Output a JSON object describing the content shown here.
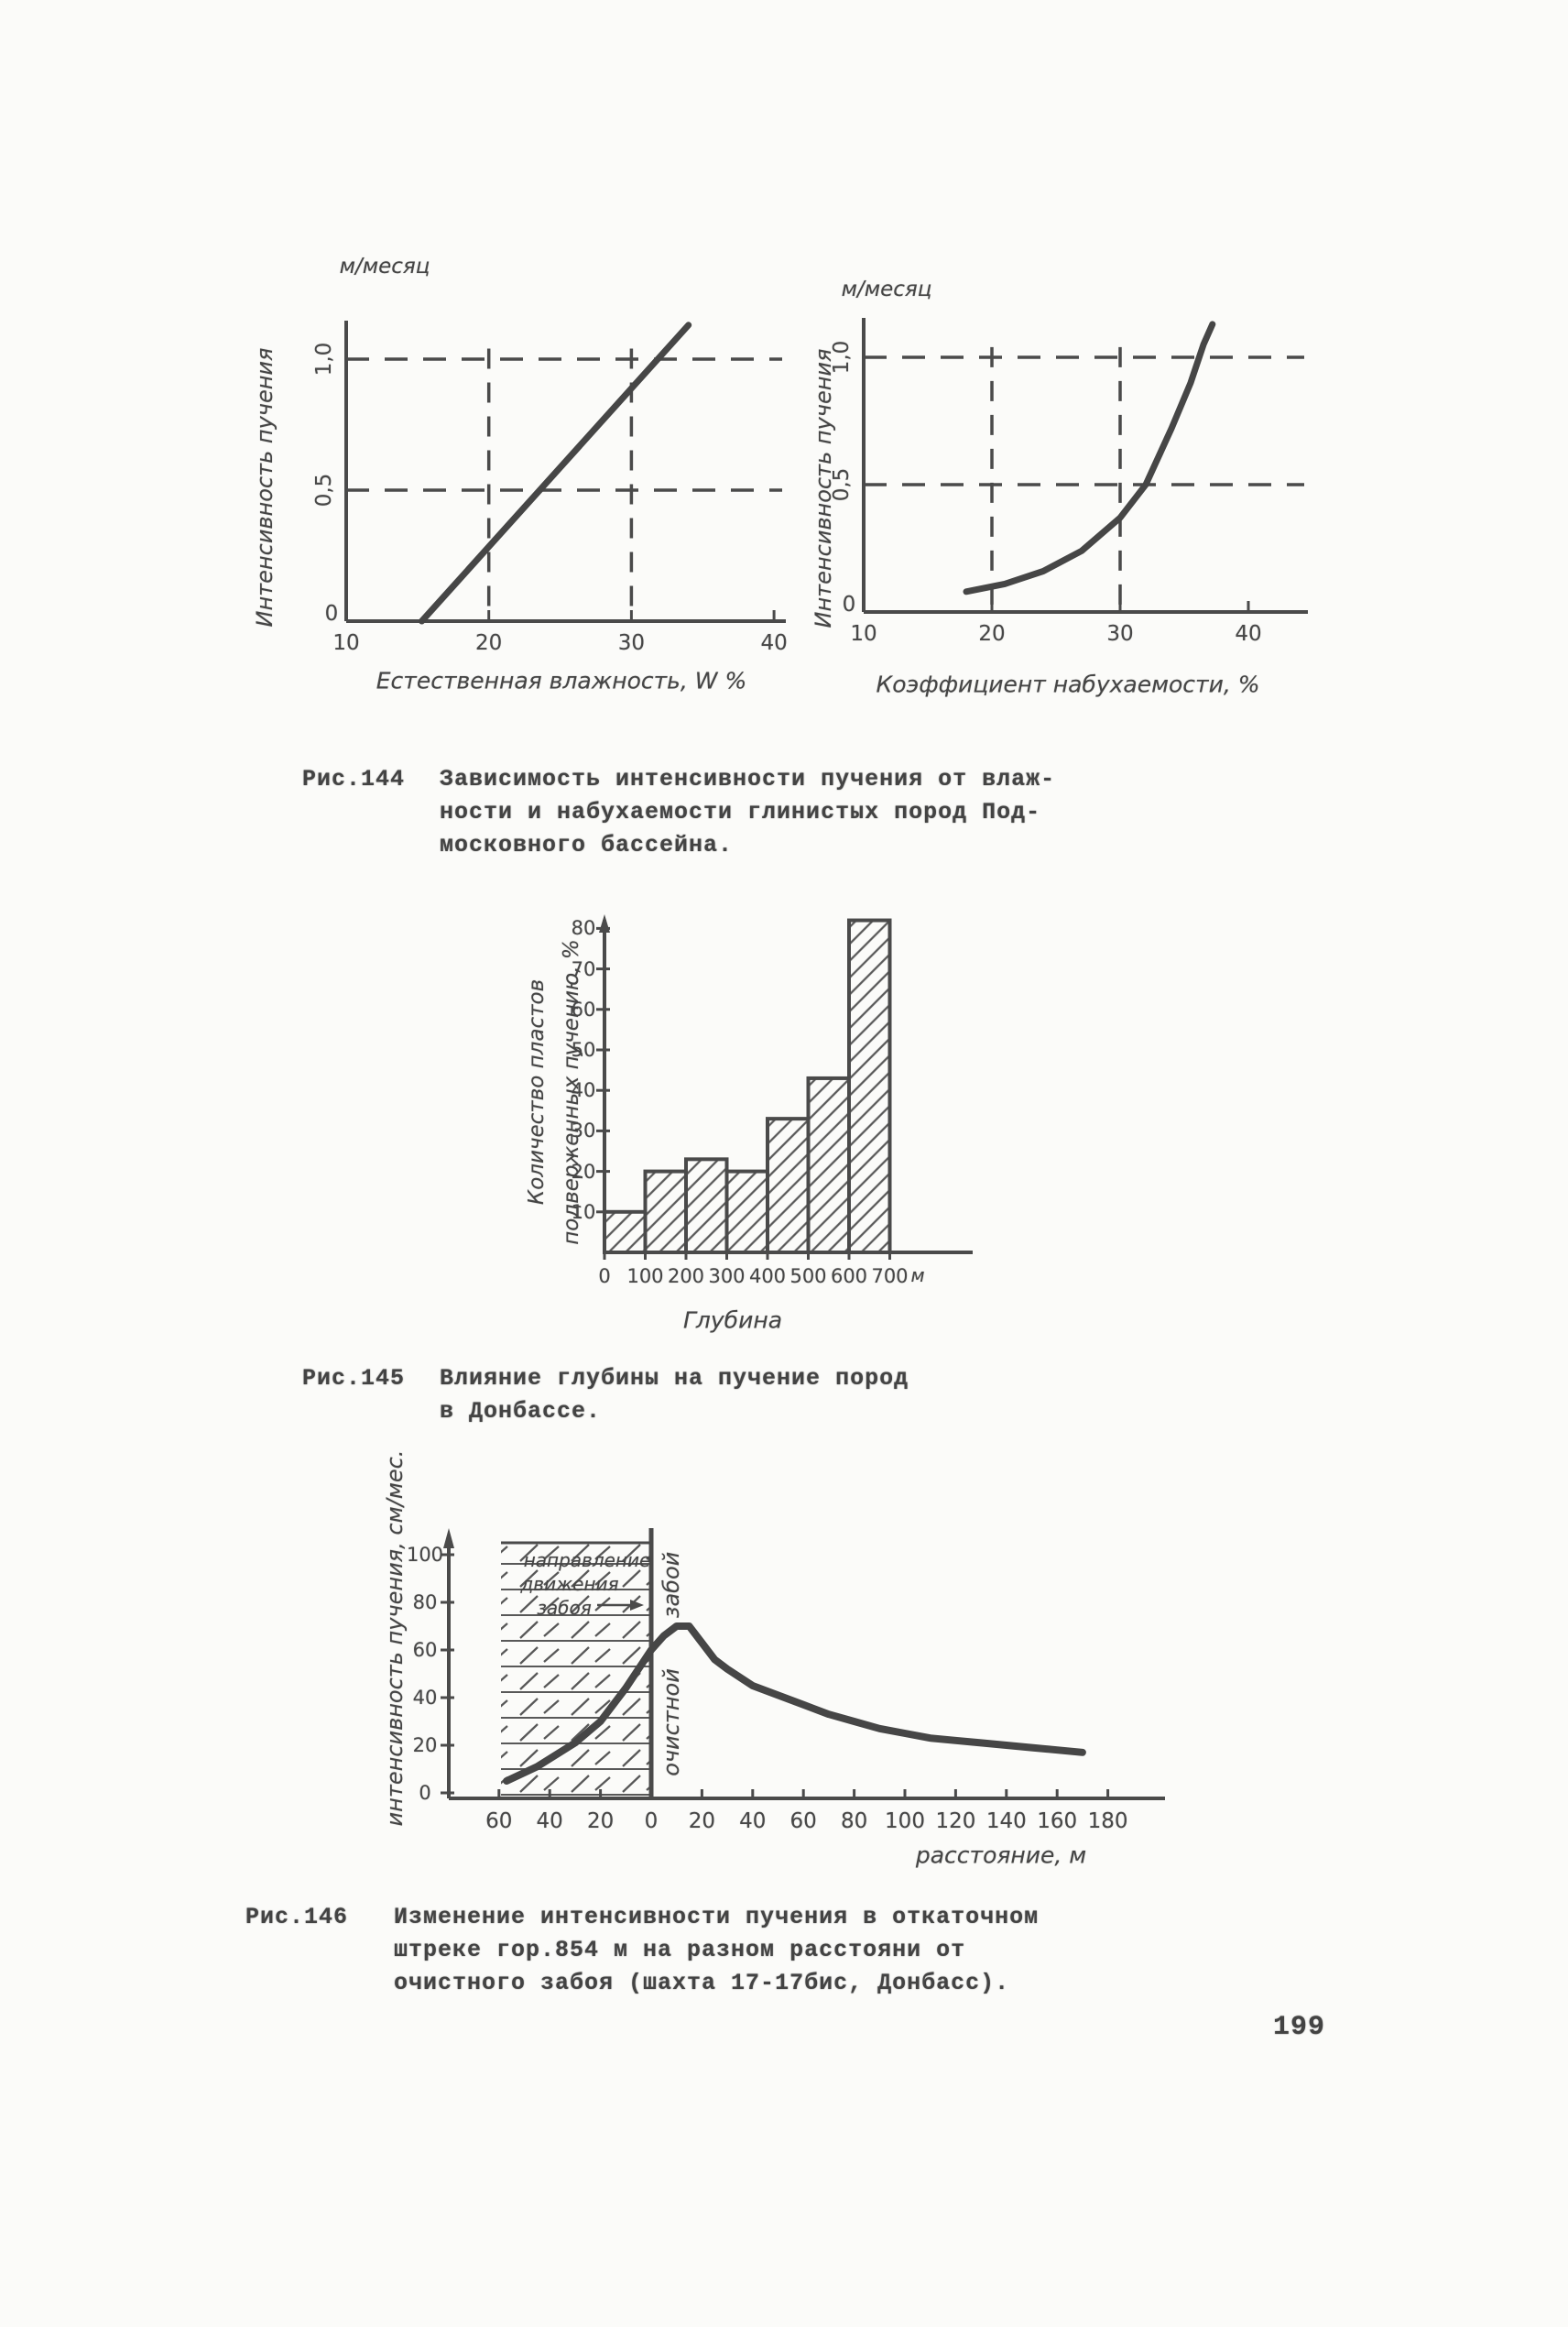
{
  "page_number": "199",
  "captions": {
    "fig144": {
      "label": "Рис.144",
      "line1": "Зависимость интенсивности пучения от влаж-",
      "line2": "ности и набухаемости глинистых пород Под-",
      "line3": "московного бассейна."
    },
    "fig145": {
      "label": "Рис.145",
      "line1": "Влияние глубины на пучение пород",
      "line2": "в Донбассе."
    },
    "fig146": {
      "label": "Рис.146",
      "line1": "Изменение интенсивности пучения в откаточном",
      "line2": "штреке гор.854 м на разном расстояни от",
      "line3": "очистного забоя (шахта 17-17бис, Донбасс)."
    }
  },
  "chart_data": [
    {
      "id": "fig144_left",
      "type": "line",
      "unit": "м/месяц",
      "ylabel": "Интенсивность пучения",
      "xlabel": "Естественная влажность, W %",
      "xlim": [
        10,
        41
      ],
      "ylim": [
        0,
        1.2
      ],
      "xticks": [
        10,
        20,
        30,
        40
      ],
      "xtick_labels": [
        "10",
        "20",
        "30",
        "40"
      ],
      "yticks": [
        0,
        0.5,
        1.0
      ],
      "ytick_labels": [
        "0",
        "0,5",
        "1,0"
      ],
      "grid_x": [
        20,
        30
      ],
      "grid_y": [
        0.5,
        1.0
      ],
      "x": [
        15.3,
        34
      ],
      "y": [
        0,
        1.13
      ]
    },
    {
      "id": "fig144_right",
      "type": "line",
      "unit": "м/месяц",
      "ylabel": "Интенсивность пучения",
      "xlabel": "Коэффициент набухаемости, %",
      "xlim": [
        10,
        41
      ],
      "ylim": [
        0,
        1.2
      ],
      "xticks": [
        10,
        20,
        30,
        40
      ],
      "xtick_labels": [
        "10",
        "20",
        "30",
        "40"
      ],
      "yticks": [
        0,
        0.5,
        1.0
      ],
      "ytick_labels": [
        "0",
        "0,5",
        "1,0"
      ],
      "grid_x": [
        20,
        30
      ],
      "grid_y": [
        0.5,
        1.0
      ],
      "x": [
        18,
        21,
        24,
        27,
        30,
        32,
        34,
        35.5,
        36.5,
        37.2
      ],
      "y": [
        0.08,
        0.11,
        0.16,
        0.24,
        0.37,
        0.5,
        0.72,
        0.9,
        1.05,
        1.13
      ]
    },
    {
      "id": "fig145",
      "type": "bar",
      "categories": [
        "0-100",
        "100-200",
        "200-300",
        "300-400",
        "400-500",
        "500-600",
        "600-700"
      ],
      "values": [
        10,
        20,
        23,
        20,
        33,
        43,
        82
      ],
      "xtick_labels": [
        "0",
        "100",
        "200",
        "300",
        "400",
        "500",
        "600",
        "700"
      ],
      "x_unit": "м",
      "yticks": [
        10,
        20,
        30,
        40,
        50,
        60,
        70,
        80
      ],
      "ylim": [
        0,
        85
      ],
      "xlabel": "Глубина",
      "ylabel": "Количество пластов подверженных пучению, %",
      "ylabel_lines": [
        "Количество пластов",
        "подверженных пучению, %"
      ]
    },
    {
      "id": "fig146",
      "type": "line",
      "ylabel": "интенсивность пучения, см/мес.",
      "xlabel": "расстояние, м",
      "xlim": [
        -60,
        185
      ],
      "ylim": [
        0,
        100
      ],
      "xticks": [
        -60,
        -40,
        -20,
        0,
        20,
        40,
        60,
        80,
        100,
        120,
        140,
        160,
        180
      ],
      "xtick_labels": [
        "60",
        "40",
        "20",
        "0",
        "20",
        "40",
        "60",
        "80",
        "100",
        "120",
        "140",
        "160",
        "180"
      ],
      "yticks": [
        0,
        20,
        40,
        60,
        80,
        100
      ],
      "annotation_lines": [
        "направление",
        "движения",
        "забоя"
      ],
      "face_labels": [
        "забой",
        "очистной"
      ],
      "x": [
        -57,
        -45,
        -30,
        -20,
        -10,
        -5,
        0,
        5,
        10,
        15,
        20,
        25,
        30,
        40,
        50,
        60,
        70,
        80,
        90,
        100,
        110,
        120,
        130,
        140,
        150,
        160,
        170
      ],
      "y": [
        5,
        11,
        21,
        30,
        44,
        52,
        60,
        66,
        70,
        70,
        63,
        56,
        52,
        45,
        41,
        37,
        33,
        30,
        27,
        25,
        23,
        22,
        21,
        20,
        19,
        18,
        17
      ]
    }
  ]
}
